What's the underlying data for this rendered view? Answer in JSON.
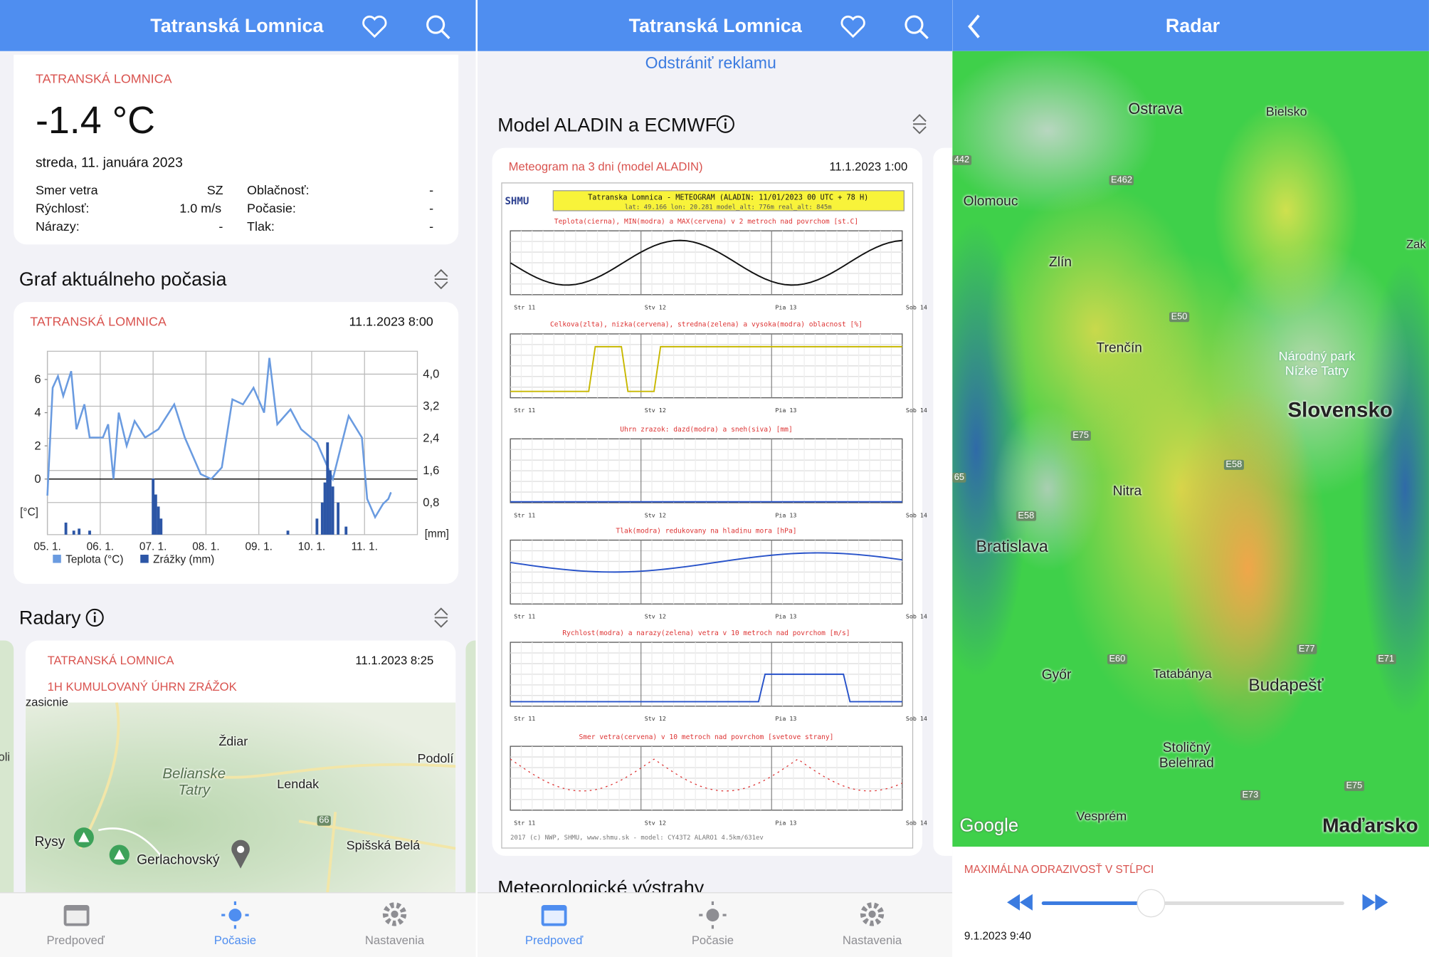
{
  "header_title": "Tatranská Lomnica",
  "tabs": [
    "Predpoveď",
    "Počasie",
    "Nastavenia"
  ],
  "current": {
    "location": "TATRANSKÁ LOMNICA",
    "temperature": "-1.4 °C",
    "date": "streda, 11. januára 2023",
    "rows": [
      [
        "Smer vetra",
        "SZ",
        "Oblačnosť:",
        "-"
      ],
      [
        "Rýchlosť:",
        "1.0 m/s",
        "Počasie:",
        "-"
      ],
      [
        "Nárazy:",
        "-",
        "Tlak:",
        "-"
      ]
    ]
  },
  "graph_section": "Graf aktuálneho počasia",
  "graph_card": {
    "location": "TATRANSKÁ LOMNICA",
    "time": "11.1.2023 8:00"
  },
  "chart_data": {
    "type": "line",
    "xlim": [
      0,
      7
    ],
    "xticks": [
      {
        "value": 0,
        "label": "05. 1."
      },
      {
        "value": 1,
        "label": "06. 1."
      },
      {
        "value": 2,
        "label": "07. 1."
      },
      {
        "value": 3,
        "label": "08. 1."
      },
      {
        "value": 4,
        "label": "09. 1."
      },
      {
        "value": 5,
        "label": "10. 1."
      },
      {
        "value": 6,
        "label": "11. 1."
      }
    ],
    "ylim": [
      -3.35,
      7.7
    ],
    "yticks": [
      0,
      2,
      4,
      6
    ],
    "ylabel": "[°C]",
    "y2lim": [
      0,
      4.57
    ],
    "y2ticks": [
      {
        "value": 0.8,
        "label": "0,8"
      },
      {
        "value": 1.6,
        "label": "1,6"
      },
      {
        "value": 2.4,
        "label": "2,4"
      },
      {
        "value": 3.2,
        "label": "3,2"
      },
      {
        "value": 4.0,
        "label": "4,0"
      }
    ],
    "y2label": "[mm]",
    "grid": true,
    "series": [
      {
        "name": "Teplota (°C)",
        "color": "#6a9be0",
        "kind": "line",
        "x": [
          0,
          0.1,
          0.2,
          0.3,
          0.45,
          0.55,
          0.7,
          0.8,
          1.05,
          1.15,
          1.25,
          1.35,
          1.5,
          1.65,
          1.85,
          2.1,
          2.4,
          2.6,
          2.9,
          3.1,
          3.3,
          3.5,
          3.7,
          3.9,
          4.1,
          4.2,
          4.35,
          4.6,
          4.8,
          5.1,
          5.4,
          5.7,
          5.95,
          6.05,
          6.2,
          6.35,
          6.45,
          6.5
        ],
        "values": [
          -1,
          5.5,
          6.2,
          5,
          6.5,
          3,
          4.5,
          2.5,
          2.5,
          3.3,
          0,
          4,
          2,
          3.5,
          2.5,
          3,
          4.5,
          2.5,
          0.3,
          0,
          0.7,
          4.8,
          4.5,
          5.5,
          4,
          7.3,
          3.3,
          4.2,
          3,
          2.2,
          0,
          3.8,
          2.5,
          -1.2,
          -2.3,
          -1.5,
          -1.2,
          -0.8
        ]
      },
      {
        "name": "Zrážky (mm)",
        "color": "#2c56a6",
        "kind": "bar",
        "axis": "y2",
        "x": [
          0.35,
          0.5,
          0.6,
          0.8,
          2.0,
          2.05,
          2.1,
          2.15,
          4.55,
          5.1,
          5.2,
          5.25,
          5.3,
          5.35,
          5.4,
          5.5,
          5.65
        ],
        "values": [
          0.3,
          0.1,
          0.15,
          0.1,
          1.4,
          1.0,
          0.7,
          0.4,
          0.1,
          0.4,
          0.8,
          1.3,
          2.3,
          1.6,
          1.2,
          0.8,
          0.2
        ]
      }
    ]
  },
  "radar_section": "Radary",
  "radar_card": {
    "location": "TATRANSKÁ LOMNICA",
    "time": "11.1.2023 8:25",
    "subtitle": "1H KUMULOVANÝ ÚHRN ZRÁŽOK",
    "map_labels": [
      "zasicnie",
      "Ždiar",
      "Podolí",
      "Belianske Tatry",
      "Lendak",
      "66",
      "Rysy",
      "Spišská Belá",
      "Gerlachovský",
      "oli"
    ]
  },
  "remove_ads": "Odstrániť reklamu",
  "model_section": "Model ALADIN a ECMWF",
  "meteogram_card": {
    "title": "Meteogram na 3 dni (model ALADIN)",
    "time": "11.1.2023 1:00",
    "logo": "SHMU",
    "header": "Tatranska Lomnica - METEOGRAM (ALADIN: 11/01/2023 00 UTC + 78 H)",
    "coords": "lat: 49.166   lon: 20.281   model_alt: 776m   real_alt: 845m",
    "panels": [
      "Teplota(cierna), MIN(modra) a MAX(cervena) v 2 metroch nad povrchom [st.C]",
      "Celkova(zlta), nizka(cervena), stredna(zelena) a vysoka(modra) oblacnost [%]",
      "Uhrn zrazok: dazd(modra) a sneh(siva) [mm]",
      "Tlak(modra) redukovany na hladinu mora [hPa]",
      "Rychlost(modra) a narazy(zelena) vetra v 10 metroch nad povrchom [m/s]",
      "Smer vetra(cervena) v 10 metroch nad povrchom [svetove strany]"
    ],
    "days": [
      "Str 11",
      "Stv 12",
      "Pia 13",
      "Sob 14"
    ],
    "footer": "2017 (c) NWP, SHMU, www.shmu.sk - model: CY43T2 ALARO1 4.5km/631ev"
  },
  "warnings_section": "Meteorologické výstrahy",
  "radar_screen": {
    "title": "Radar",
    "map_labels": [
      "Ostrava",
      "Bielsko",
      "Olomouc",
      "Zlín",
      "Trenčín",
      "Národný park Nízke Tatry",
      "Slovensko",
      "Nitra",
      "Bratislava",
      "Győr",
      "Tatabánya",
      "Budapešť",
      "Stoličný Belehrad",
      "Vesprém",
      "Maďarsko",
      "Zak",
      "E462",
      "E50",
      "E75",
      "E58",
      "E60",
      "E77",
      "E71",
      "E73",
      "442",
      "65",
      "E75",
      "E58",
      "Google"
    ],
    "layer": "MAXIMÁLNA ODRAZIVOSŤ V STĹPCI",
    "time": "9.1.2023 9:40"
  }
}
